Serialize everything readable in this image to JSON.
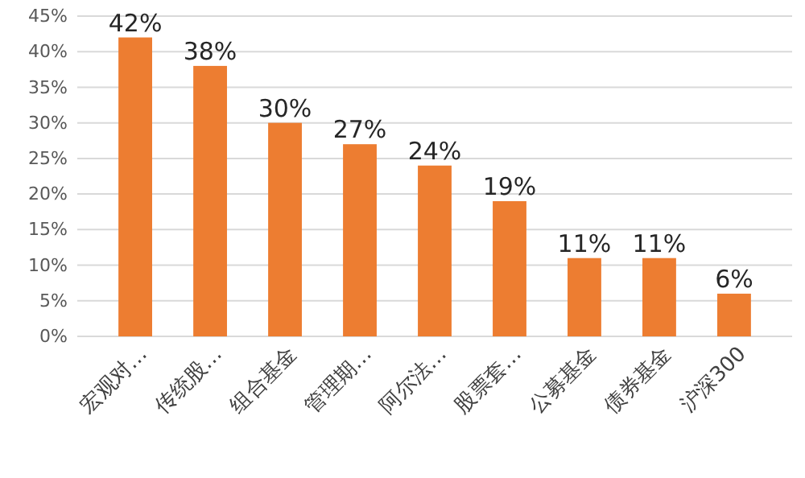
{
  "chart_data": {
    "type": "bar",
    "categories": [
      "宏观对…",
      "传统股…",
      "组合基金",
      "管理期…",
      "阿尔法…",
      "股票套…",
      "公募基金",
      "债券基金",
      "沪深300"
    ],
    "values": [
      42,
      38,
      30,
      27,
      24,
      19,
      11,
      11,
      6
    ],
    "value_labels": [
      "42%",
      "38%",
      "30%",
      "27%",
      "24%",
      "19%",
      "11%",
      "11%",
      "6%"
    ],
    "color": "#ed7d31",
    "ylim": [
      0,
      45
    ],
    "yticks": [
      {
        "value": 0,
        "label": "0%"
      },
      {
        "value": 5,
        "label": "5%"
      },
      {
        "value": 10,
        "label": "10%"
      },
      {
        "value": 15,
        "label": "15%"
      },
      {
        "value": 20,
        "label": "20%"
      },
      {
        "value": 25,
        "label": "25%"
      },
      {
        "value": 30,
        "label": "30%"
      },
      {
        "value": 35,
        "label": "35%"
      },
      {
        "value": 40,
        "label": "40%"
      },
      {
        "value": 45,
        "label": "45%"
      }
    ],
    "grid": "y"
  }
}
